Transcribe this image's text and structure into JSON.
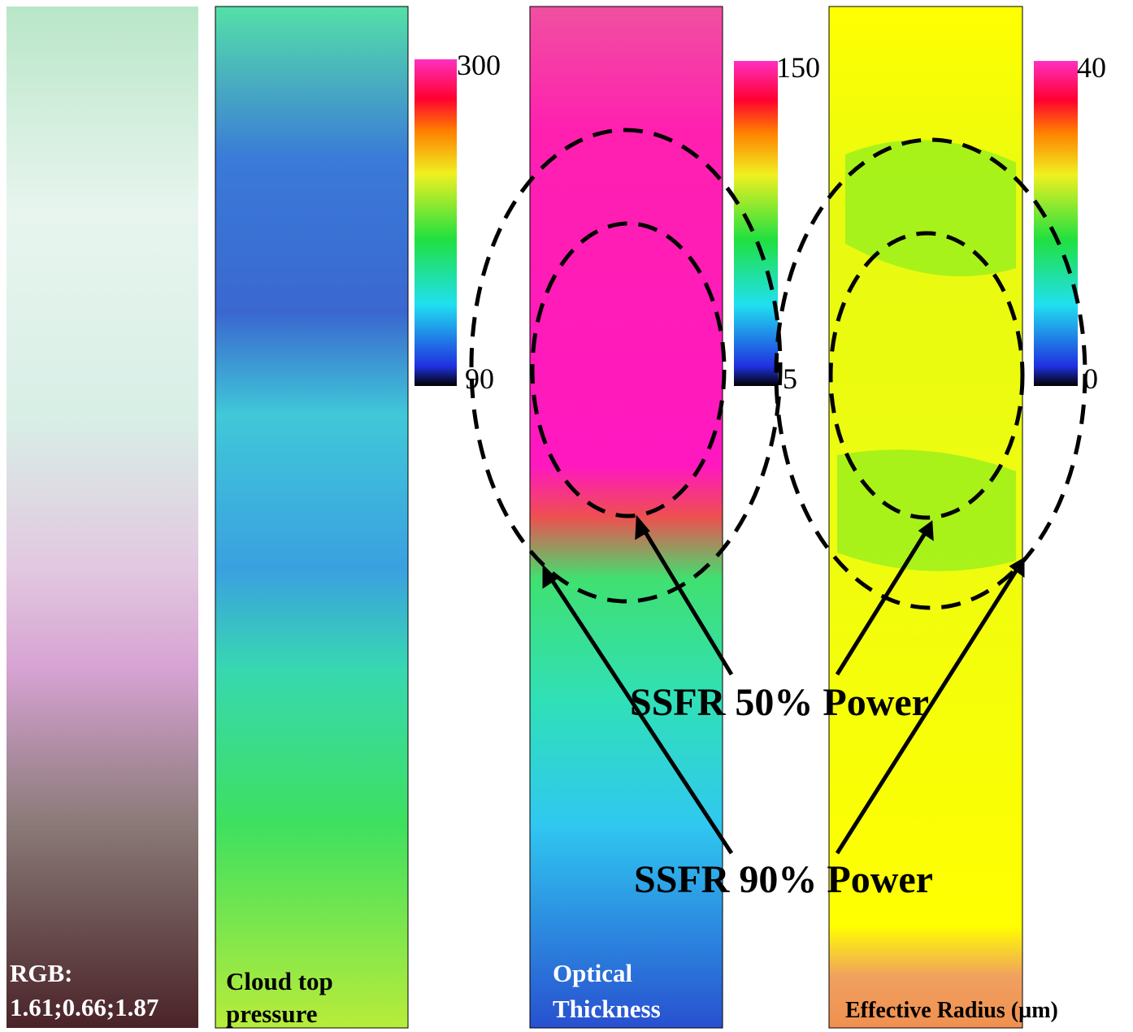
{
  "panels": [
    {
      "label": [
        "RGB:",
        "1.61;0.66;1.87"
      ]
    },
    {
      "label": [
        "Cloud top",
        "pressure"
      ],
      "colorbar": {
        "max": "300",
        "min": "90"
      }
    },
    {
      "label": [
        "Optical",
        "Thickness"
      ],
      "colorbar": {
        "max": "150",
        "min": "5"
      }
    },
    {
      "label": [
        "Effective Radius (µm)"
      ],
      "colorbar": {
        "max": "40",
        "min": "0"
      }
    }
  ],
  "annotations": [
    "SSFR 50% Power",
    "SSFR 90% Power"
  ]
}
